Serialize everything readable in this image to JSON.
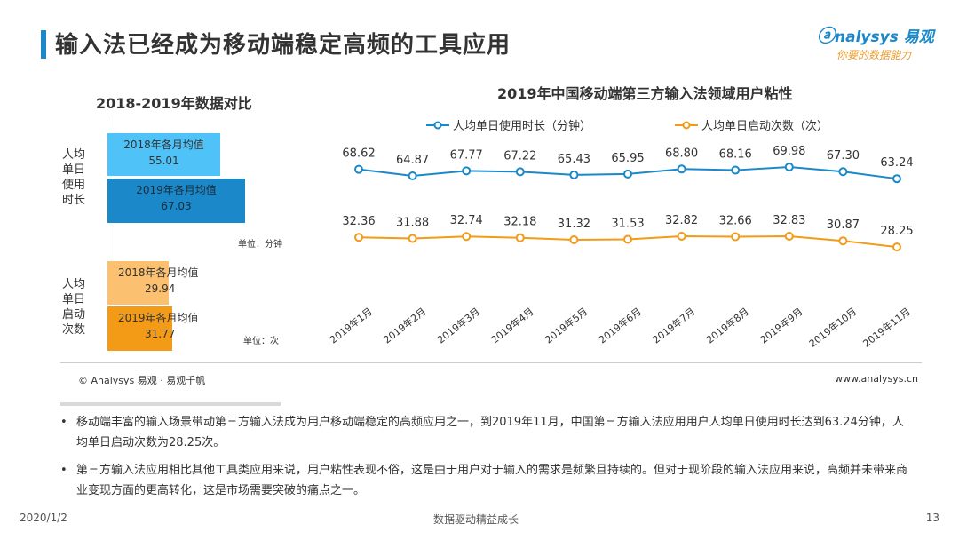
{
  "header": {
    "title": "输入法已经成为移动端稳定高频的工具应用",
    "logo_brand": "nalysys 易观",
    "logo_slogan": "你要的数据能力"
  },
  "left_panel": {
    "title": "2018-2019年数据对比",
    "groups": [
      {
        "label": "人均单日使用时长",
        "unit": "单位：分钟",
        "bars": [
          {
            "label": "2018年各月均值",
            "value": "55.01",
            "num": 55.01,
            "color": "#4fc3f7"
          },
          {
            "label": "2019年各月均值",
            "value": "67.03",
            "num": 67.03,
            "color": "#1a88c9"
          }
        ]
      },
      {
        "label": "人均单日启动次数",
        "unit": "单位：次",
        "bars": [
          {
            "label": "2018年各月均值",
            "value": "29.94",
            "num": 29.94,
            "color": "#fbc070"
          },
          {
            "label": "2019年各月均值",
            "value": "31.77",
            "num": 31.77,
            "color": "#f39a16"
          }
        ]
      }
    ]
  },
  "chart_data": [
    {
      "type": "bar",
      "title": "2018-2019年数据对比",
      "series": [
        {
          "name": "人均单日使用时长",
          "categories": [
            "2018年各月均值",
            "2019年各月均值"
          ],
          "values": [
            55.01,
            67.03
          ]
        },
        {
          "name": "人均单日启动次数",
          "categories": [
            "2018年各月均值",
            "2019年各月均值"
          ],
          "values": [
            29.94,
            31.77
          ]
        }
      ]
    },
    {
      "type": "line",
      "title": "2019年中国移动端第三方输入法领域用户粘性",
      "categories": [
        "2019年1月",
        "2019年2月",
        "2019年3月",
        "2019年4月",
        "2019年5月",
        "2019年6月",
        "2019年7月",
        "2019年8月",
        "2019年9月",
        "2019年10月",
        "2019年11月"
      ],
      "series": [
        {
          "name": "人均单日使用时长（分钟）",
          "color": "#1a88c9",
          "values": [
            68.62,
            64.87,
            67.77,
            67.22,
            65.43,
            65.95,
            68.8,
            68.16,
            69.98,
            67.3,
            63.24
          ],
          "labels": [
            "68.62",
            "64.87",
            "67.77",
            "67.22",
            "65.43",
            "65.95",
            "68.80",
            "68.16",
            "69.98",
            "67.30",
            "63.24"
          ]
        },
        {
          "name": "人均单日启动次数（次）",
          "color": "#f39a16",
          "values": [
            32.36,
            31.88,
            32.74,
            32.18,
            31.32,
            31.53,
            32.82,
            32.66,
            32.83,
            30.87,
            28.25
          ],
          "labels": [
            "32.36",
            "31.88",
            "32.74",
            "32.18",
            "31.32",
            "31.53",
            "32.82",
            "32.66",
            "32.83",
            "30.87",
            "28.25"
          ]
        }
      ],
      "legend": "top"
    }
  ],
  "line_chart": {
    "title": "2019年中国移动端第三方输入法领域用户粘性",
    "legend": [
      "人均单日使用时长（分钟）",
      "人均单日启动次数（次）"
    ]
  },
  "source": {
    "copyright": "© Analysys 易观 · 易观千帆",
    "site": "www.analysys.cn"
  },
  "bullets": [
    "移动端丰富的输入场景带动第三方输入法成为用户移动端稳定的高频应用之一，到2019年11月，中国第三方输入法应用用户人均单日使用时长达到63.24分钟，人均单日启动次数为28.25次。",
    "第三方输入法应用相比其他工具类应用来说，用户粘性表现不俗，这是由于用户对于输入的需求是频繁且持续的。但对于现阶段的输入法应用来说，高频并未带来商业变现方面的更高转化，这是市场需要突破的痛点之一。"
  ],
  "footer": {
    "date": "2020/1/2",
    "center": "数据驱动精益成长",
    "page": "13"
  }
}
